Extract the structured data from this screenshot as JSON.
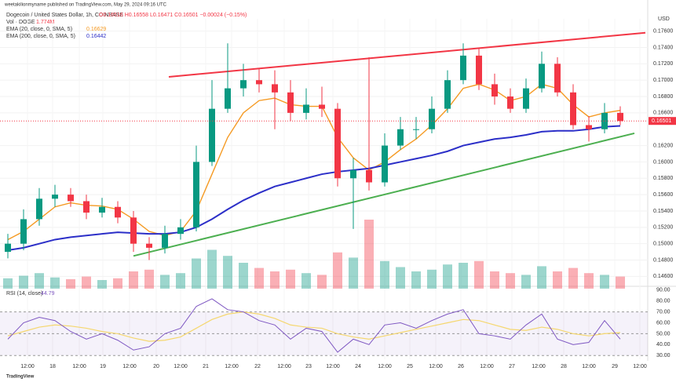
{
  "chart_data": {
    "type": "candlestick",
    "title": "weetakilionmyname published on TradingView.com, May 29, 2024 09:16 UTC",
    "symbol": "Dogecoin / United States Dollar, 1h, COINBASE",
    "ohlc_text": "O0.16516 H0.16558 L0.16471 C0.16501 −0.00024 (−0.15%)",
    "volume_name": "Vol · DOGE",
    "volume_text": "1.774M",
    "currency": "USD",
    "brand": "TradingView",
    "up_color": "#089981",
    "down_color": "#f23645",
    "xticks": [
      {
        "value": 1.25,
        "label": "12:00"
      },
      {
        "value": 2.85,
        "label": "18"
      },
      {
        "value": 4.55,
        "label": "12:00"
      },
      {
        "value": 6.05,
        "label": "19"
      },
      {
        "value": 7.75,
        "label": "12:00"
      },
      {
        "value": 9.45,
        "label": "20"
      },
      {
        "value": 11,
        "label": "12:00"
      },
      {
        "value": 12.6,
        "label": "21"
      },
      {
        "value": 14.25,
        "label": "12:00"
      },
      {
        "value": 15.9,
        "label": "22"
      },
      {
        "value": 17.6,
        "label": "12:00"
      },
      {
        "value": 19.15,
        "label": "23"
      },
      {
        "value": 20.7,
        "label": "12:00"
      },
      {
        "value": 22.3,
        "label": "24"
      },
      {
        "value": 24,
        "label": "12:00"
      },
      {
        "value": 25.6,
        "label": "25"
      },
      {
        "value": 27.25,
        "label": "12:00"
      },
      {
        "value": 28.85,
        "label": "26"
      },
      {
        "value": 30.5,
        "label": "12:00"
      },
      {
        "value": 32.1,
        "label": "27"
      },
      {
        "value": 33.8,
        "label": "12:00"
      },
      {
        "value": 35.4,
        "label": "28"
      },
      {
        "value": 37,
        "label": "12:00"
      },
      {
        "value": 38.65,
        "label": "29"
      },
      {
        "value": 40.25,
        "label": "12:00"
      }
    ],
    "ylim": [
      0.1445,
      0.1775
    ],
    "yticks": [
      {
        "value": 0.146,
        "label": "0.14600"
      },
      {
        "value": 0.148,
        "label": "0.14800"
      },
      {
        "value": 0.15,
        "label": "0.15000"
      },
      {
        "value": 0.152,
        "label": "0.15200"
      },
      {
        "value": 0.154,
        "label": "0.15400"
      },
      {
        "value": 0.156,
        "label": "0.15600"
      },
      {
        "value": 0.158,
        "label": "0.15800"
      },
      {
        "value": 0.16,
        "label": "0.16000"
      },
      {
        "value": 0.162,
        "label": "0.16200"
      },
      {
        "value": 0.166,
        "label": "0.16600"
      },
      {
        "value": 0.168,
        "label": "0.16800"
      },
      {
        "value": 0.17,
        "label": "0.17000"
      },
      {
        "value": 0.172,
        "label": "0.17200"
      },
      {
        "value": 0.174,
        "label": "0.17400"
      },
      {
        "value": 0.176,
        "label": "0.17600"
      }
    ],
    "last_price": 0.16501,
    "open": [
      0.149,
      0.15,
      0.153,
      0.1555,
      0.156,
      0.1552,
      0.1538,
      0.1545,
      0.1532,
      0.15,
      0.1495,
      0.1512,
      0.152,
      0.16,
      0.1665,
      0.169,
      0.17,
      0.1695,
      0.1685,
      0.166,
      0.167,
      0.1665,
      0.158,
      0.159,
      0.1575,
      0.162,
      0.164,
      0.164,
      0.1665,
      0.17,
      0.173,
      0.1695,
      0.168,
      0.1665,
      0.169,
      0.172,
      0.1685,
      0.1645,
      0.164,
      0.166
    ],
    "high": [
      0.1512,
      0.1542,
      0.1568,
      0.1572,
      0.1568,
      0.156,
      0.1556,
      0.1552,
      0.154,
      0.1508,
      0.1522,
      0.153,
      0.162,
      0.17,
      0.1745,
      0.172,
      0.1715,
      0.1712,
      0.17,
      0.169,
      0.1692,
      0.1672,
      0.1605,
      0.1728,
      0.1635,
      0.1655,
      0.1655,
      0.168,
      0.1712,
      0.1745,
      0.174,
      0.1708,
      0.169,
      0.1702,
      0.1735,
      0.1728,
      0.1695,
      0.1656,
      0.1672,
      0.1668
    ],
    "low": [
      0.1482,
      0.1492,
      0.1522,
      0.1545,
      0.1545,
      0.153,
      0.1532,
      0.1525,
      0.149,
      0.148,
      0.1488,
      0.1505,
      0.1515,
      0.1595,
      0.166,
      0.168,
      0.1685,
      0.164,
      0.165,
      0.1652,
      0.1655,
      0.157,
      0.1518,
      0.1565,
      0.157,
      0.1615,
      0.1628,
      0.1635,
      0.166,
      0.1695,
      0.1688,
      0.167,
      0.166,
      0.166,
      0.1685,
      0.168,
      0.164,
      0.1625,
      0.1635,
      0.1645
    ],
    "close": [
      0.15,
      0.153,
      0.1555,
      0.156,
      0.1552,
      0.1538,
      0.1545,
      0.1532,
      0.15,
      0.1495,
      0.1512,
      0.152,
      0.16,
      0.1665,
      0.169,
      0.17,
      0.1695,
      0.1685,
      0.166,
      0.167,
      0.1665,
      0.158,
      0.159,
      0.1575,
      0.162,
      0.164,
      0.164,
      0.1665,
      0.17,
      0.173,
      0.1695,
      0.168,
      0.1665,
      0.169,
      0.172,
      0.1685,
      0.1645,
      0.164,
      0.166,
      0.165
    ],
    "volume": [
      1.2,
      1.5,
      1.8,
      1.3,
      1.1,
      1.4,
      1.0,
      1.2,
      2.0,
      2.2,
      1.6,
      1.8,
      3.5,
      4.5,
      3.8,
      3.0,
      2.4,
      2.0,
      2.2,
      1.8,
      1.6,
      4.2,
      3.6,
      8.0,
      3.2,
      2.5,
      2.0,
      2.2,
      2.8,
      3.0,
      3.2,
      2.0,
      1.8,
      1.6,
      2.6,
      2.0,
      2.4,
      1.8,
      1.6,
      1.4
    ],
    "series": [
      {
        "name": "EMA (20, close, 0, SMA, 5)",
        "last": 0.16629,
        "color": "#f59a23",
        "values": [
          0.1505,
          0.1515,
          0.153,
          0.1545,
          0.155,
          0.1547,
          0.1546,
          0.1542,
          0.153,
          0.1515,
          0.151,
          0.1515,
          0.154,
          0.1585,
          0.163,
          0.166,
          0.1675,
          0.1678,
          0.167,
          0.1668,
          0.1668,
          0.163,
          0.1605,
          0.159,
          0.16,
          0.1615,
          0.1628,
          0.1645,
          0.1665,
          0.169,
          0.1695,
          0.1688,
          0.1675,
          0.168,
          0.1695,
          0.169,
          0.167,
          0.1655,
          0.166,
          0.1663
        ]
      },
      {
        "name": "EMA (200, close, 0, SMA, 5)",
        "last": 0.16442,
        "color": "#2c2fc8",
        "values": [
          0.1492,
          0.1495,
          0.15,
          0.1505,
          0.1508,
          0.151,
          0.1512,
          0.1514,
          0.1513,
          0.1512,
          0.1512,
          0.1514,
          0.152,
          0.153,
          0.1542,
          0.1553,
          0.1562,
          0.157,
          0.1575,
          0.158,
          0.1585,
          0.1588,
          0.159,
          0.1592,
          0.1596,
          0.16,
          0.1604,
          0.1608,
          0.1613,
          0.162,
          0.1624,
          0.1628,
          0.163,
          0.1633,
          0.1637,
          0.1638,
          0.1638,
          0.164,
          0.1643,
          0.1644
        ]
      }
    ],
    "trendlines": [
      {
        "color": "#f23645",
        "points": [
          [
            10.25,
            0.1704
          ],
          [
            40.6,
            0.1758
          ]
        ]
      },
      {
        "color": "#4caf50",
        "points": [
          [
            8,
            0.1485
          ],
          [
            39.9,
            0.1635
          ]
        ]
      }
    ],
    "rsi": {
      "name": "RSI (14, close)",
      "last": 44.79,
      "color": "#7e57c2",
      "ma_color": "#f5d76e",
      "ylim": [
        28,
        92
      ],
      "yticks": [
        {
          "value": 30,
          "label": "30.00"
        },
        {
          "value": 40,
          "label": "40.00"
        },
        {
          "value": 50,
          "label": "50.00"
        },
        {
          "value": 60,
          "label": "60.00"
        },
        {
          "value": 70,
          "label": "70.00"
        },
        {
          "value": 80,
          "label": "80.00"
        },
        {
          "value": 90,
          "label": "90.00"
        }
      ],
      "band": [
        30,
        70
      ],
      "values": [
        45,
        60,
        65,
        62,
        52,
        45,
        50,
        44,
        35,
        38,
        50,
        55,
        75,
        82,
        72,
        70,
        62,
        58,
        45,
        55,
        52,
        33,
        45,
        40,
        58,
        60,
        55,
        62,
        68,
        72,
        50,
        48,
        45,
        58,
        68,
        45,
        40,
        42,
        62,
        45
      ],
      "ma_values": [
        48,
        52,
        56,
        58,
        57,
        55,
        52,
        50,
        46,
        43,
        44,
        47,
        55,
        63,
        68,
        70,
        68,
        64,
        58,
        56,
        55,
        50,
        47,
        45,
        48,
        51,
        54,
        57,
        60,
        63,
        62,
        58,
        54,
        53,
        56,
        54,
        50,
        48,
        50,
        51
      ]
    }
  }
}
